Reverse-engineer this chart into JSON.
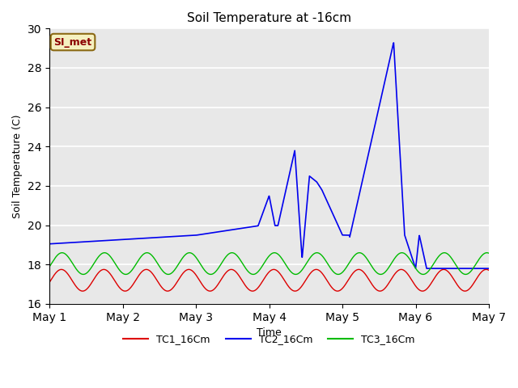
{
  "title": "Soil Temperature at -16cm",
  "xlabel": "Time",
  "ylabel": "Soil Temperature (C)",
  "ylim": [
    16,
    30
  ],
  "yticks": [
    16,
    18,
    20,
    22,
    24,
    26,
    28,
    30
  ],
  "xtick_labels": [
    "May 1",
    "May 2",
    "May 3",
    "May 4",
    "May 5",
    "May 6",
    "May 7"
  ],
  "bg_color": "#e8e8e8",
  "annotation_text": "SI_met",
  "annotation_bg": "#f5f0c0",
  "annotation_border": "#8b6914",
  "line_colors": {
    "TC1": "#dd0000",
    "TC2": "#0000ee",
    "TC3": "#00bb00"
  },
  "legend_labels": [
    "TC1_16Cm",
    "TC2_16Cm",
    "TC3_16Cm"
  ]
}
